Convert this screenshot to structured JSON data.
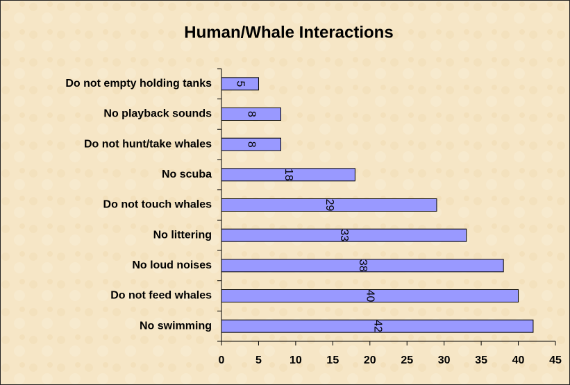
{
  "chart_data": {
    "type": "bar",
    "orientation": "horizontal",
    "title": "Human/Whale Interactions",
    "categories": [
      "Do not empty holding tanks",
      "No playback sounds",
      "Do not hunt/take whales",
      "No scuba",
      "Do not touch whales",
      "No littering",
      "No loud noises",
      "Do not feed whales",
      "No swimming"
    ],
    "values": [
      5,
      8,
      8,
      18,
      29,
      33,
      38,
      40,
      42
    ],
    "color": "#9999ff",
    "xlim": [
      0,
      45
    ],
    "xticks": [
      0,
      5,
      10,
      15,
      20,
      25,
      30,
      35,
      40,
      45
    ],
    "grid": false
  }
}
